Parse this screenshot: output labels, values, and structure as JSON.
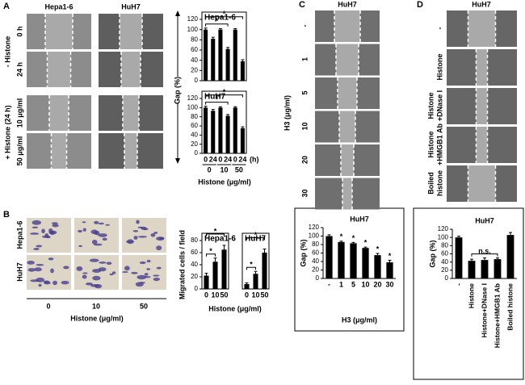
{
  "panels": {
    "a": {
      "label": "A",
      "columns": [
        "Hepa1-6",
        "HuH7"
      ],
      "rows": [
        "0 h",
        "24 h",
        "10 μg/ml",
        "50 μg/ml"
      ],
      "groups": [
        "- Histone",
        "+ Histone (24 h)"
      ]
    },
    "b": {
      "label": "B",
      "rows": [
        "Hepa1-6",
        "HuH7"
      ],
      "columns": [
        "0",
        "10",
        "50"
      ],
      "x_label": "Histone (μg/ml)"
    },
    "c": {
      "label": "C",
      "title": "HuH7",
      "rows": [
        "-",
        "1",
        "5",
        "10",
        "20",
        "30"
      ],
      "y_label": "H3 (μg/ml)"
    },
    "d": {
      "label": "D",
      "title": "HuH7",
      "rows": [
        [
          "-"
        ],
        [
          "Histone"
        ],
        [
          "Histone",
          "+DNase I"
        ],
        [
          "Histone",
          "+HMGB1 Ab"
        ],
        [
          "Boiled",
          "histone"
        ]
      ]
    }
  },
  "chart_data": [
    {
      "type": "bar",
      "title": "Hepa1-6",
      "values": [
        100,
        82,
        100,
        62,
        100,
        38
      ],
      "errors": [
        3,
        3,
        2,
        3,
        2,
        3
      ],
      "color": "#000000",
      "ylim": [
        0,
        120
      ],
      "yticks": [
        0,
        20,
        40,
        60,
        80,
        100,
        120
      ],
      "y_label": "Gap (%)",
      "significance": [
        "*",
        "*"
      ]
    },
    {
      "type": "bar",
      "title": "HuH7",
      "categories": [
        "0",
        "24",
        "0",
        "24",
        "0",
        "24"
      ],
      "x_unit": "(h)",
      "groups": [
        "0",
        "10",
        "50"
      ],
      "x_label": "Histone (μg/ml)",
      "values": [
        100,
        93,
        100,
        82,
        100,
        55
      ],
      "errors": [
        3,
        3,
        2,
        3,
        2,
        3
      ],
      "color": "#000000",
      "ylim": [
        0,
        120
      ],
      "yticks": [
        0,
        20,
        40,
        60,
        80,
        100,
        120
      ],
      "significance": [
        "*",
        "*"
      ]
    },
    {
      "type": "bar",
      "title": "Hepa1-6",
      "categories": [
        "0",
        "10",
        "50"
      ],
      "values": [
        22,
        45,
        65
      ],
      "errors": [
        4,
        6,
        7
      ],
      "color": "#000000",
      "ylim": [
        0,
        80
      ],
      "yticks": [
        0,
        20,
        40,
        60,
        80
      ],
      "y_label": "Migrated cells / field",
      "x_label": "Histone (μg/ml)",
      "significance": [
        "*",
        "*"
      ]
    },
    {
      "type": "bar",
      "title": "HuH7",
      "categories": [
        "0",
        "10",
        "50"
      ],
      "values": [
        8,
        25,
        60
      ],
      "errors": [
        2,
        4,
        6
      ],
      "color": "#000000",
      "ylim": [
        0,
        80
      ],
      "significance": [
        "*",
        "*"
      ]
    },
    {
      "type": "bar",
      "title": "HuH7",
      "categories": [
        "-",
        "1",
        "5",
        "10",
        "20",
        "30"
      ],
      "values": [
        100,
        86,
        83,
        72,
        55,
        38
      ],
      "errors": [
        3,
        2,
        2,
        2,
        4,
        5
      ],
      "markers": [
        null,
        "*",
        "*",
        "*",
        "*",
        "*"
      ],
      "color": "#000000",
      "ylim": [
        0,
        120
      ],
      "yticks": [
        0,
        20,
        40,
        60,
        80,
        100,
        120
      ],
      "y_label": "Gap (%)",
      "x_label": "H3 (μg/ml)"
    },
    {
      "type": "bar",
      "title": "HuH7",
      "categories": [
        "-",
        "Histone",
        "Histone+DNase I",
        "Histone+HMGB1 Ab",
        "Boiled histone"
      ],
      "values": [
        100,
        43,
        45,
        47,
        106
      ],
      "errors": [
        3,
        4,
        5,
        3,
        6
      ],
      "color": "#000000",
      "ylim": [
        0,
        120
      ],
      "yticks": [
        0,
        20,
        40,
        60,
        80,
        100,
        120
      ],
      "y_label": "Gap (%)",
      "significance": [
        "n.s."
      ]
    }
  ]
}
